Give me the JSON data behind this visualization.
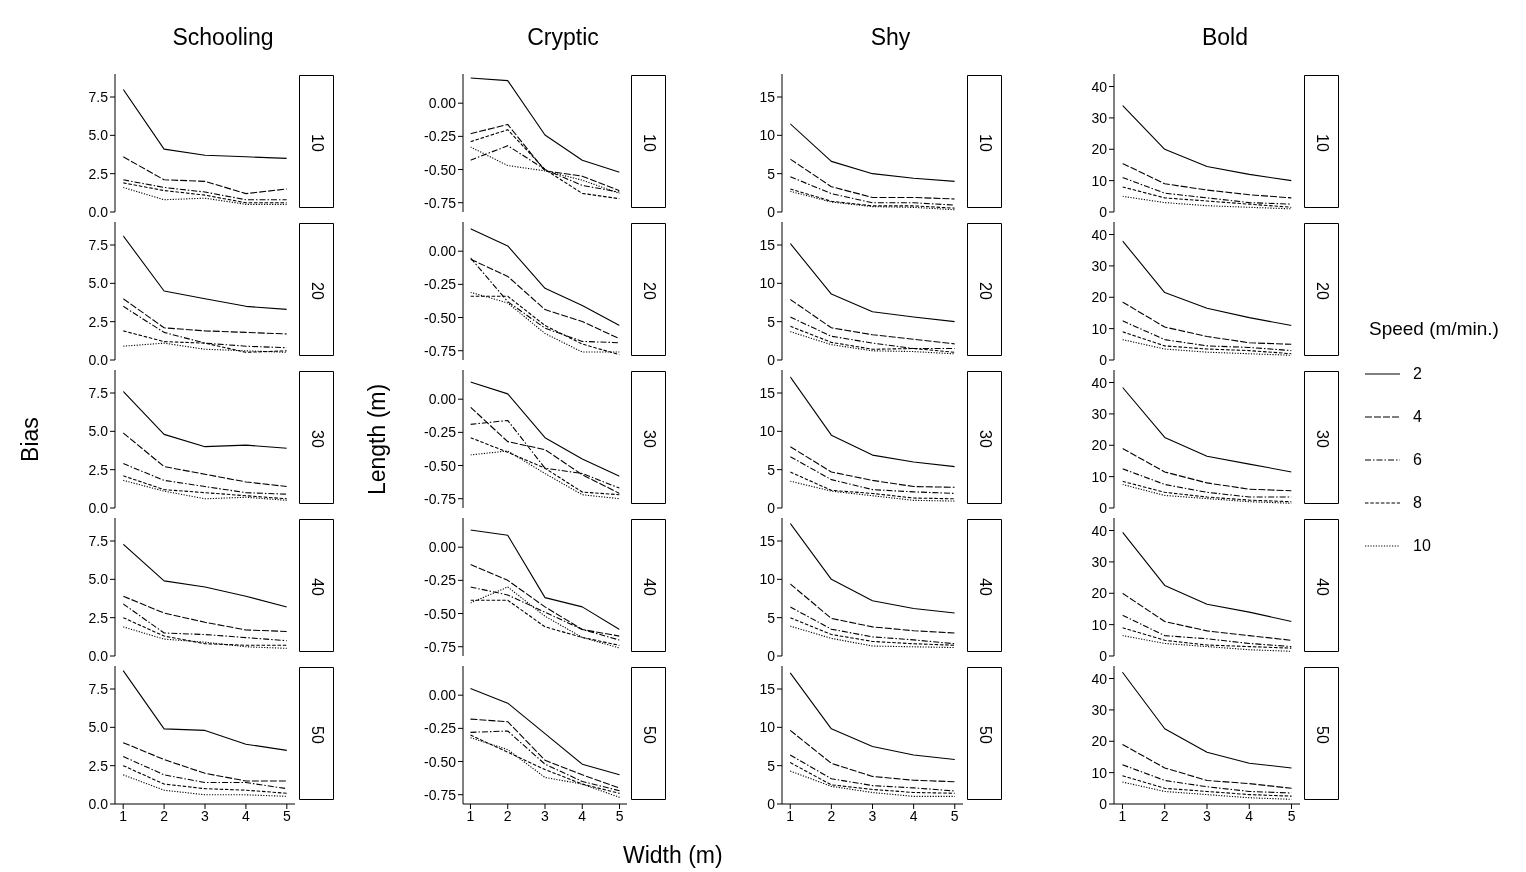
{
  "chart_data": [
    {
      "type": "line",
      "title": "Schooling",
      "annotations": [
        "10"
      ],
      "x": [
        1,
        2,
        3,
        4,
        5
      ],
      "ylim": [
        0,
        9
      ],
      "yticks": [
        {
          "value": 0,
          "label": "0.0"
        },
        {
          "value": 2.5,
          "label": "2.5"
        },
        {
          "value": 5,
          "label": "5.0"
        },
        {
          "value": 7.5,
          "label": "7.5"
        }
      ],
      "tick_labels": "y",
      "series": [
        {
          "color": "#000000",
          "line_style": "solid",
          "values": [
            8.0,
            4.1,
            3.7,
            3.6,
            3.5
          ]
        },
        {
          "color": "#000000",
          "line_style": "longdash",
          "values": [
            3.6,
            2.1,
            2.0,
            1.2,
            1.5
          ]
        },
        {
          "color": "#000000",
          "line_style": "dashdot",
          "values": [
            2.1,
            1.6,
            1.3,
            0.8,
            0.8
          ]
        },
        {
          "color": "#000000",
          "line_style": "dashed",
          "values": [
            1.9,
            1.4,
            1.1,
            0.6,
            0.6
          ]
        },
        {
          "color": "#000000",
          "line_style": "dotted",
          "values": [
            1.6,
            0.8,
            0.9,
            0.5,
            0.5
          ]
        }
      ]
    },
    {
      "type": "line",
      "title": "Cryptic",
      "annotations": [
        "10"
      ],
      "x": [
        1,
        2,
        3,
        4,
        5
      ],
      "ylim": [
        -0.82,
        0.22
      ],
      "yticks": [
        {
          "value": -0.75,
          "label": "-0.75"
        },
        {
          "value": -0.5,
          "label": "-0.50"
        },
        {
          "value": -0.25,
          "label": "-0.25"
        },
        {
          "value": 0,
          "label": "0.00"
        }
      ],
      "tick_labels": "y",
      "series": [
        {
          "color": "#000000",
          "line_style": "solid",
          "values": [
            0.19,
            0.17,
            -0.24,
            -0.43,
            -0.52
          ]
        },
        {
          "color": "#000000",
          "line_style": "longdash",
          "values": [
            -0.23,
            -0.16,
            -0.51,
            -0.55,
            -0.66
          ]
        },
        {
          "color": "#000000",
          "line_style": "dashdot",
          "values": [
            -0.43,
            -0.32,
            -0.5,
            -0.62,
            -0.67
          ]
        },
        {
          "color": "#000000",
          "line_style": "dashed",
          "values": [
            -0.29,
            -0.2,
            -0.5,
            -0.68,
            -0.72
          ]
        },
        {
          "color": "#000000",
          "line_style": "dotted",
          "values": [
            -0.33,
            -0.47,
            -0.51,
            -0.58,
            -0.68
          ]
        }
      ]
    },
    {
      "type": "line",
      "title": "Shy",
      "annotations": [
        "10"
      ],
      "x": [
        1,
        2,
        3,
        4,
        5
      ],
      "ylim": [
        0,
        18
      ],
      "yticks": [
        0,
        5,
        10,
        15
      ],
      "tick_labels": "y",
      "series": [
        {
          "color": "#000000",
          "line_style": "solid",
          "values": [
            11.5,
            6.6,
            5.0,
            4.4,
            4.0
          ]
        },
        {
          "color": "#000000",
          "line_style": "longdash",
          "values": [
            6.9,
            3.3,
            1.9,
            1.9,
            1.7
          ]
        },
        {
          "color": "#000000",
          "line_style": "dashdot",
          "values": [
            4.6,
            2.4,
            1.2,
            1.2,
            0.9
          ]
        },
        {
          "color": "#000000",
          "line_style": "dashed",
          "values": [
            3.0,
            1.4,
            0.8,
            0.8,
            0.5
          ]
        },
        {
          "color": "#000000",
          "line_style": "dotted",
          "values": [
            2.7,
            1.3,
            0.7,
            0.6,
            0.3
          ]
        }
      ]
    },
    {
      "type": "line",
      "title": "Bold",
      "annotations": [
        "10"
      ],
      "x": [
        1,
        2,
        3,
        4,
        5
      ],
      "ylim": [
        0,
        44
      ],
      "yticks": [
        0,
        10,
        20,
        30,
        40
      ],
      "tick_labels": "y",
      "series": [
        {
          "color": "#000000",
          "line_style": "solid",
          "values": [
            34,
            20,
            14.5,
            12,
            10
          ]
        },
        {
          "color": "#000000",
          "line_style": "longdash",
          "values": [
            15.5,
            9,
            7,
            5.5,
            4.5
          ]
        },
        {
          "color": "#000000",
          "line_style": "dashdot",
          "values": [
            11,
            6,
            4.5,
            3,
            2.5
          ]
        },
        {
          "color": "#000000",
          "line_style": "dashed",
          "values": [
            8,
            4.5,
            3.5,
            2.5,
            1.5
          ]
        },
        {
          "color": "#000000",
          "line_style": "dotted",
          "values": [
            5,
            3,
            2,
            1.5,
            1
          ]
        }
      ]
    },
    {
      "type": "line",
      "annotations": [
        "20"
      ],
      "x": [
        1,
        2,
        3,
        4,
        5
      ],
      "ylim": [
        0,
        9
      ],
      "yticks": [
        {
          "value": 0,
          "label": "0.0"
        },
        {
          "value": 2.5,
          "label": "2.5"
        },
        {
          "value": 5,
          "label": "5.0"
        },
        {
          "value": 7.5,
          "label": "7.5"
        }
      ],
      "tick_labels": "y",
      "series": [
        {
          "color": "#000000",
          "line_style": "solid",
          "values": [
            8.1,
            4.5,
            4.0,
            3.5,
            3.3
          ]
        },
        {
          "color": "#000000",
          "line_style": "longdash",
          "values": [
            4.0,
            2.1,
            1.9,
            1.8,
            1.7
          ]
        },
        {
          "color": "#000000",
          "line_style": "dashdot",
          "values": [
            3.5,
            1.8,
            1.1,
            0.9,
            0.8
          ]
        },
        {
          "color": "#000000",
          "line_style": "dashed",
          "values": [
            1.9,
            1.2,
            1.1,
            0.5,
            0.6
          ]
        },
        {
          "color": "#000000",
          "line_style": "dotted",
          "values": [
            0.9,
            1.1,
            0.7,
            0.6,
            0.5
          ]
        }
      ]
    },
    {
      "type": "line",
      "annotations": [
        "20"
      ],
      "x": [
        1,
        2,
        3,
        4,
        5
      ],
      "ylim": [
        -0.82,
        0.22
      ],
      "yticks": [
        {
          "value": -0.75,
          "label": "-0.75"
        },
        {
          "value": -0.5,
          "label": "-0.50"
        },
        {
          "value": -0.25,
          "label": "-0.25"
        },
        {
          "value": 0,
          "label": "0.00"
        }
      ],
      "tick_labels": "y",
      "series": [
        {
          "color": "#000000",
          "line_style": "solid",
          "values": [
            0.17,
            0.04,
            -0.28,
            -0.41,
            -0.56
          ]
        },
        {
          "color": "#000000",
          "line_style": "longdash",
          "values": [
            -0.06,
            -0.19,
            -0.44,
            -0.53,
            -0.66
          ]
        },
        {
          "color": "#000000",
          "line_style": "dashdot",
          "values": [
            -0.05,
            -0.38,
            -0.58,
            -0.68,
            -0.69
          ]
        },
        {
          "color": "#000000",
          "line_style": "dashed",
          "values": [
            -0.34,
            -0.34,
            -0.56,
            -0.7,
            -0.78
          ]
        },
        {
          "color": "#000000",
          "line_style": "dotted",
          "values": [
            -0.31,
            -0.39,
            -0.62,
            -0.76,
            -0.76
          ]
        }
      ]
    },
    {
      "type": "line",
      "annotations": [
        "20"
      ],
      "x": [
        1,
        2,
        3,
        4,
        5
      ],
      "ylim": [
        0,
        18
      ],
      "yticks": [
        0,
        5,
        10,
        15
      ],
      "tick_labels": "y",
      "series": [
        {
          "color": "#000000",
          "line_style": "solid",
          "values": [
            15.2,
            8.6,
            6.3,
            5.6,
            5.0
          ]
        },
        {
          "color": "#000000",
          "line_style": "longdash",
          "values": [
            7.9,
            4.2,
            3.3,
            2.7,
            2.1
          ]
        },
        {
          "color": "#000000",
          "line_style": "dashdot",
          "values": [
            5.6,
            3.1,
            2.2,
            1.5,
            1.5
          ]
        },
        {
          "color": "#000000",
          "line_style": "dashed",
          "values": [
            4.4,
            2.3,
            1.4,
            1.5,
            1.0
          ]
        },
        {
          "color": "#000000",
          "line_style": "dotted",
          "values": [
            3.7,
            2.0,
            1.2,
            1.1,
            0.8
          ]
        }
      ]
    },
    {
      "type": "line",
      "annotations": [
        "20"
      ],
      "x": [
        1,
        2,
        3,
        4,
        5
      ],
      "ylim": [
        0,
        44
      ],
      "yticks": [
        0,
        10,
        20,
        30,
        40
      ],
      "tick_labels": "y",
      "series": [
        {
          "color": "#000000",
          "line_style": "solid",
          "values": [
            38,
            21.5,
            16.5,
            13.5,
            11
          ]
        },
        {
          "color": "#000000",
          "line_style": "longdash",
          "values": [
            18.5,
            10.5,
            7.5,
            5.5,
            5
          ]
        },
        {
          "color": "#000000",
          "line_style": "dashdot",
          "values": [
            12.5,
            6.5,
            4.5,
            4,
            3
          ]
        },
        {
          "color": "#000000",
          "line_style": "dashed",
          "values": [
            9,
            4.5,
            3.5,
            3,
            2
          ]
        },
        {
          "color": "#000000",
          "line_style": "dotted",
          "values": [
            6.5,
            3.5,
            2.5,
            2,
            1.5
          ]
        }
      ]
    },
    {
      "type": "line",
      "annotations": [
        "30"
      ],
      "ylabel": "Bias",
      "x": [
        1,
        2,
        3,
        4,
        5
      ],
      "ylim": [
        0,
        9
      ],
      "yticks": [
        {
          "value": 0,
          "label": "0.0"
        },
        {
          "value": 2.5,
          "label": "2.5"
        },
        {
          "value": 5,
          "label": "5.0"
        },
        {
          "value": 7.5,
          "label": "7.5"
        }
      ],
      "tick_labels": "y",
      "series": [
        {
          "color": "#000000",
          "line_style": "solid",
          "values": [
            7.6,
            4.8,
            4.0,
            4.1,
            3.9
          ]
        },
        {
          "color": "#000000",
          "line_style": "longdash",
          "values": [
            4.9,
            2.7,
            2.2,
            1.7,
            1.4
          ]
        },
        {
          "color": "#000000",
          "line_style": "dashdot",
          "values": [
            2.9,
            1.8,
            1.4,
            1.0,
            0.9
          ]
        },
        {
          "color": "#000000",
          "line_style": "dashed",
          "values": [
            2.1,
            1.2,
            1.0,
            0.8,
            0.6
          ]
        },
        {
          "color": "#000000",
          "line_style": "dotted",
          "values": [
            1.8,
            1.1,
            0.6,
            0.7,
            0.5
          ]
        }
      ]
    },
    {
      "type": "line",
      "annotations": [
        "30"
      ],
      "ylabel": "Length (m)",
      "x": [
        1,
        2,
        3,
        4,
        5
      ],
      "ylim": [
        -0.82,
        0.22
      ],
      "yticks": [
        {
          "value": -0.75,
          "label": "-0.75"
        },
        {
          "value": -0.5,
          "label": "-0.50"
        },
        {
          "value": -0.25,
          "label": "-0.25"
        },
        {
          "value": 0,
          "label": "0.00"
        }
      ],
      "tick_labels": "y",
      "series": [
        {
          "color": "#000000",
          "line_style": "solid",
          "values": [
            0.13,
            0.04,
            -0.29,
            -0.45,
            -0.58
          ]
        },
        {
          "color": "#000000",
          "line_style": "longdash",
          "values": [
            -0.06,
            -0.32,
            -0.38,
            -0.57,
            -0.71
          ]
        },
        {
          "color": "#000000",
          "line_style": "dashdot",
          "values": [
            -0.19,
            -0.16,
            -0.52,
            -0.56,
            -0.67
          ]
        },
        {
          "color": "#000000",
          "line_style": "dashed",
          "values": [
            -0.29,
            -0.4,
            -0.52,
            -0.7,
            -0.72
          ]
        },
        {
          "color": "#000000",
          "line_style": "dotted",
          "values": [
            -0.42,
            -0.39,
            -0.56,
            -0.72,
            -0.75
          ]
        }
      ]
    },
    {
      "type": "line",
      "annotations": [
        "30"
      ],
      "x": [
        1,
        2,
        3,
        4,
        5
      ],
      "ylim": [
        0,
        18
      ],
      "yticks": [
        0,
        5,
        10,
        15
      ],
      "tick_labels": "y",
      "series": [
        {
          "color": "#000000",
          "line_style": "solid",
          "values": [
            17.1,
            9.5,
            6.9,
            6.0,
            5.4
          ]
        },
        {
          "color": "#000000",
          "line_style": "longdash",
          "values": [
            8.0,
            4.7,
            3.6,
            2.8,
            2.7
          ]
        },
        {
          "color": "#000000",
          "line_style": "dashdot",
          "values": [
            6.7,
            3.7,
            2.4,
            2.1,
            1.9
          ]
        },
        {
          "color": "#000000",
          "line_style": "dashed",
          "values": [
            4.7,
            2.3,
            1.9,
            1.3,
            1.2
          ]
        },
        {
          "color": "#000000",
          "line_style": "dotted",
          "values": [
            3.5,
            2.2,
            1.6,
            1.0,
            0.9
          ]
        }
      ]
    },
    {
      "type": "line",
      "annotations": [
        "30"
      ],
      "legend": "right",
      "legend_title": "Speed (m/min.)",
      "x": [
        1,
        2,
        3,
        4,
        5
      ],
      "ylim": [
        0,
        44
      ],
      "yticks": [
        0,
        10,
        20,
        30,
        40
      ],
      "tick_labels": "y",
      "series": [
        {
          "name": "2",
          "color": "#000000",
          "line_style": "solid",
          "values": [
            38.5,
            22.5,
            16.5,
            14,
            11.5
          ]
        },
        {
          "name": "4",
          "color": "#000000",
          "line_style": "longdash",
          "values": [
            19,
            11.5,
            8,
            6,
            5.5
          ]
        },
        {
          "name": "6",
          "color": "#000000",
          "line_style": "dashdot",
          "values": [
            12.5,
            7.5,
            5,
            3.5,
            3.5
          ]
        },
        {
          "name": "8",
          "color": "#000000",
          "line_style": "dashed",
          "values": [
            8.5,
            5,
            3.5,
            2.5,
            2
          ]
        },
        {
          "name": "10",
          "color": "#000000",
          "line_style": "dotted",
          "values": [
            7.5,
            4,
            3,
            2,
            1.5
          ]
        }
      ]
    },
    {
      "type": "line",
      "annotations": [
        "40"
      ],
      "x": [
        1,
        2,
        3,
        4,
        5
      ],
      "ylim": [
        0,
        9
      ],
      "yticks": [
        {
          "value": 0,
          "label": "0.0"
        },
        {
          "value": 2.5,
          "label": "2.5"
        },
        {
          "value": 5,
          "label": "5.0"
        },
        {
          "value": 7.5,
          "label": "7.5"
        }
      ],
      "tick_labels": "y",
      "series": [
        {
          "color": "#000000",
          "line_style": "solid",
          "values": [
            7.3,
            4.9,
            4.5,
            3.9,
            3.2
          ]
        },
        {
          "color": "#000000",
          "line_style": "longdash",
          "values": [
            3.9,
            2.8,
            2.2,
            1.7,
            1.6
          ]
        },
        {
          "color": "#000000",
          "line_style": "dashdot",
          "values": [
            3.4,
            1.5,
            1.4,
            1.2,
            1.0
          ]
        },
        {
          "color": "#000000",
          "line_style": "dashed",
          "values": [
            2.5,
            1.3,
            0.8,
            0.7,
            0.7
          ]
        },
        {
          "color": "#000000",
          "line_style": "dotted",
          "values": [
            1.9,
            1.1,
            0.9,
            0.6,
            0.5
          ]
        }
      ]
    },
    {
      "type": "line",
      "annotations": [
        "40"
      ],
      "x": [
        1,
        2,
        3,
        4,
        5
      ],
      "ylim": [
        -0.82,
        0.22
      ],
      "yticks": [
        {
          "value": -0.75,
          "label": "-0.75"
        },
        {
          "value": -0.5,
          "label": "-0.50"
        },
        {
          "value": -0.25,
          "label": "-0.25"
        },
        {
          "value": 0,
          "label": "0.00"
        }
      ],
      "tick_labels": "y",
      "series": [
        {
          "color": "#000000",
          "line_style": "solid",
          "values": [
            0.13,
            0.09,
            -0.38,
            -0.45,
            -0.62
          ]
        },
        {
          "color": "#000000",
          "line_style": "longdash",
          "values": [
            -0.13,
            -0.25,
            -0.45,
            -0.62,
            -0.67
          ]
        },
        {
          "color": "#000000",
          "line_style": "dashdot",
          "values": [
            -0.3,
            -0.36,
            -0.49,
            -0.62,
            -0.7
          ]
        },
        {
          "color": "#000000",
          "line_style": "dashed",
          "values": [
            -0.4,
            -0.4,
            -0.6,
            -0.68,
            -0.74
          ]
        },
        {
          "color": "#000000",
          "line_style": "dotted",
          "values": [
            -0.42,
            -0.3,
            -0.52,
            -0.68,
            -0.76
          ]
        }
      ]
    },
    {
      "type": "line",
      "annotations": [
        "40"
      ],
      "x": [
        1,
        2,
        3,
        4,
        5
      ],
      "ylim": [
        0,
        18
      ],
      "yticks": [
        0,
        5,
        10,
        15
      ],
      "tick_labels": "y",
      "series": [
        {
          "color": "#000000",
          "line_style": "solid",
          "values": [
            17.3,
            10.0,
            7.2,
            6.2,
            5.6
          ]
        },
        {
          "color": "#000000",
          "line_style": "longdash",
          "values": [
            9.4,
            4.9,
            3.8,
            3.3,
            3.0
          ]
        },
        {
          "color": "#000000",
          "line_style": "dashdot",
          "values": [
            6.4,
            3.5,
            2.5,
            2.1,
            1.6
          ]
        },
        {
          "color": "#000000",
          "line_style": "dashed",
          "values": [
            5.0,
            2.8,
            1.9,
            1.6,
            1.4
          ]
        },
        {
          "color": "#000000",
          "line_style": "dotted",
          "values": [
            3.9,
            2.3,
            1.3,
            1.2,
            1.1
          ]
        }
      ]
    },
    {
      "type": "line",
      "annotations": [
        "40"
      ],
      "x": [
        1,
        2,
        3,
        4,
        5
      ],
      "ylim": [
        0,
        44
      ],
      "yticks": [
        0,
        10,
        20,
        30,
        40
      ],
      "tick_labels": "y",
      "series": [
        {
          "color": "#000000",
          "line_style": "solid",
          "values": [
            39.5,
            22.5,
            16.5,
            14,
            11
          ]
        },
        {
          "color": "#000000",
          "line_style": "longdash",
          "values": [
            20,
            11,
            8,
            6.5,
            5
          ]
        },
        {
          "color": "#000000",
          "line_style": "dashdot",
          "values": [
            13,
            6.5,
            5.5,
            4,
            3
          ]
        },
        {
          "color": "#000000",
          "line_style": "dashed",
          "values": [
            9,
            5,
            3.5,
            3,
            2.5
          ]
        },
        {
          "color": "#000000",
          "line_style": "dotted",
          "values": [
            6.5,
            4,
            3,
            2,
            1.5
          ]
        }
      ]
    },
    {
      "type": "line",
      "annotations": [
        "50"
      ],
      "x": [
        1,
        2,
        3,
        4,
        5
      ],
      "xlim": [
        0.8,
        5.2
      ],
      "xticks": [
        1,
        2,
        3,
        4,
        5
      ],
      "ylim": [
        0,
        9
      ],
      "yticks": [
        {
          "value": 0,
          "label": "0.0"
        },
        {
          "value": 2.5,
          "label": "2.5"
        },
        {
          "value": 5,
          "label": "5.0"
        },
        {
          "value": 7.5,
          "label": "7.5"
        }
      ],
      "series": [
        {
          "color": "#000000",
          "line_style": "solid",
          "values": [
            8.7,
            4.9,
            4.8,
            3.9,
            3.5
          ]
        },
        {
          "color": "#000000",
          "line_style": "longdash",
          "values": [
            4.0,
            2.9,
            2.0,
            1.5,
            1.5
          ]
        },
        {
          "color": "#000000",
          "line_style": "dashdot",
          "values": [
            3.1,
            1.9,
            1.4,
            1.4,
            1.0
          ]
        },
        {
          "color": "#000000",
          "line_style": "dashed",
          "values": [
            2.5,
            1.3,
            1.0,
            0.9,
            0.7
          ]
        },
        {
          "color": "#000000",
          "line_style": "dotted",
          "values": [
            1.9,
            0.9,
            0.6,
            0.6,
            0.5
          ]
        }
      ]
    },
    {
      "type": "line",
      "annotations": [
        "50"
      ],
      "xlabel": "Width (m)",
      "x": [
        1,
        2,
        3,
        4,
        5
      ],
      "xlim": [
        0.8,
        5.2
      ],
      "xticks": [
        1,
        2,
        3,
        4,
        5
      ],
      "ylim": [
        -0.82,
        0.22
      ],
      "yticks": [
        {
          "value": -0.75,
          "label": "-0.75"
        },
        {
          "value": -0.5,
          "label": "-0.50"
        },
        {
          "value": -0.25,
          "label": "-0.25"
        },
        {
          "value": 0,
          "label": "0.00"
        }
      ],
      "series": [
        {
          "color": "#000000",
          "line_style": "solid",
          "values": [
            0.05,
            -0.06,
            -0.29,
            -0.52,
            -0.6
          ]
        },
        {
          "color": "#000000",
          "line_style": "longdash",
          "values": [
            -0.18,
            -0.2,
            -0.49,
            -0.6,
            -0.7
          ]
        },
        {
          "color": "#000000",
          "line_style": "dashdot",
          "values": [
            -0.28,
            -0.27,
            -0.52,
            -0.65,
            -0.72
          ]
        },
        {
          "color": "#000000",
          "line_style": "dashed",
          "values": [
            -0.3,
            -0.43,
            -0.56,
            -0.67,
            -0.74
          ]
        },
        {
          "color": "#000000",
          "line_style": "dotted",
          "values": [
            -0.32,
            -0.41,
            -0.62,
            -0.67,
            -0.77
          ]
        }
      ]
    },
    {
      "type": "line",
      "annotations": [
        "50"
      ],
      "x": [
        1,
        2,
        3,
        4,
        5
      ],
      "xlim": [
        0.8,
        5.2
      ],
      "xticks": [
        1,
        2,
        3,
        4,
        5
      ],
      "ylim": [
        0,
        18
      ],
      "yticks": [
        0,
        5,
        10,
        15
      ],
      "series": [
        {
          "color": "#000000",
          "line_style": "solid",
          "values": [
            17.1,
            9.8,
            7.5,
            6.4,
            5.8
          ]
        },
        {
          "color": "#000000",
          "line_style": "longdash",
          "values": [
            9.6,
            5.3,
            3.6,
            3.1,
            2.9
          ]
        },
        {
          "color": "#000000",
          "line_style": "dashdot",
          "values": [
            6.4,
            3.3,
            2.4,
            2.1,
            1.7
          ]
        },
        {
          "color": "#000000",
          "line_style": "dashed",
          "values": [
            5.4,
            2.5,
            1.9,
            1.5,
            1.4
          ]
        },
        {
          "color": "#000000",
          "line_style": "dotted",
          "values": [
            4.3,
            2.3,
            1.5,
            1.0,
            1.0
          ]
        }
      ]
    },
    {
      "type": "line",
      "annotations": [
        "50"
      ],
      "x": [
        1,
        2,
        3,
        4,
        5
      ],
      "xlim": [
        0.8,
        5.2
      ],
      "xticks": [
        1,
        2,
        3,
        4,
        5
      ],
      "ylim": [
        0,
        44
      ],
      "yticks": [
        0,
        10,
        20,
        30,
        40
      ],
      "series": [
        {
          "color": "#000000",
          "line_style": "solid",
          "values": [
            42,
            24,
            16.5,
            13,
            11.5
          ]
        },
        {
          "color": "#000000",
          "line_style": "longdash",
          "values": [
            19,
            11.5,
            7.5,
            6.5,
            5
          ]
        },
        {
          "color": "#000000",
          "line_style": "dashdot",
          "values": [
            12.5,
            7.5,
            5.5,
            4,
            3.5
          ]
        },
        {
          "color": "#000000",
          "line_style": "dashed",
          "values": [
            9,
            5,
            4,
            3,
            2.5
          ]
        },
        {
          "color": "#000000",
          "line_style": "dotted",
          "values": [
            7,
            4,
            3,
            2,
            1.5
          ]
        }
      ]
    }
  ]
}
